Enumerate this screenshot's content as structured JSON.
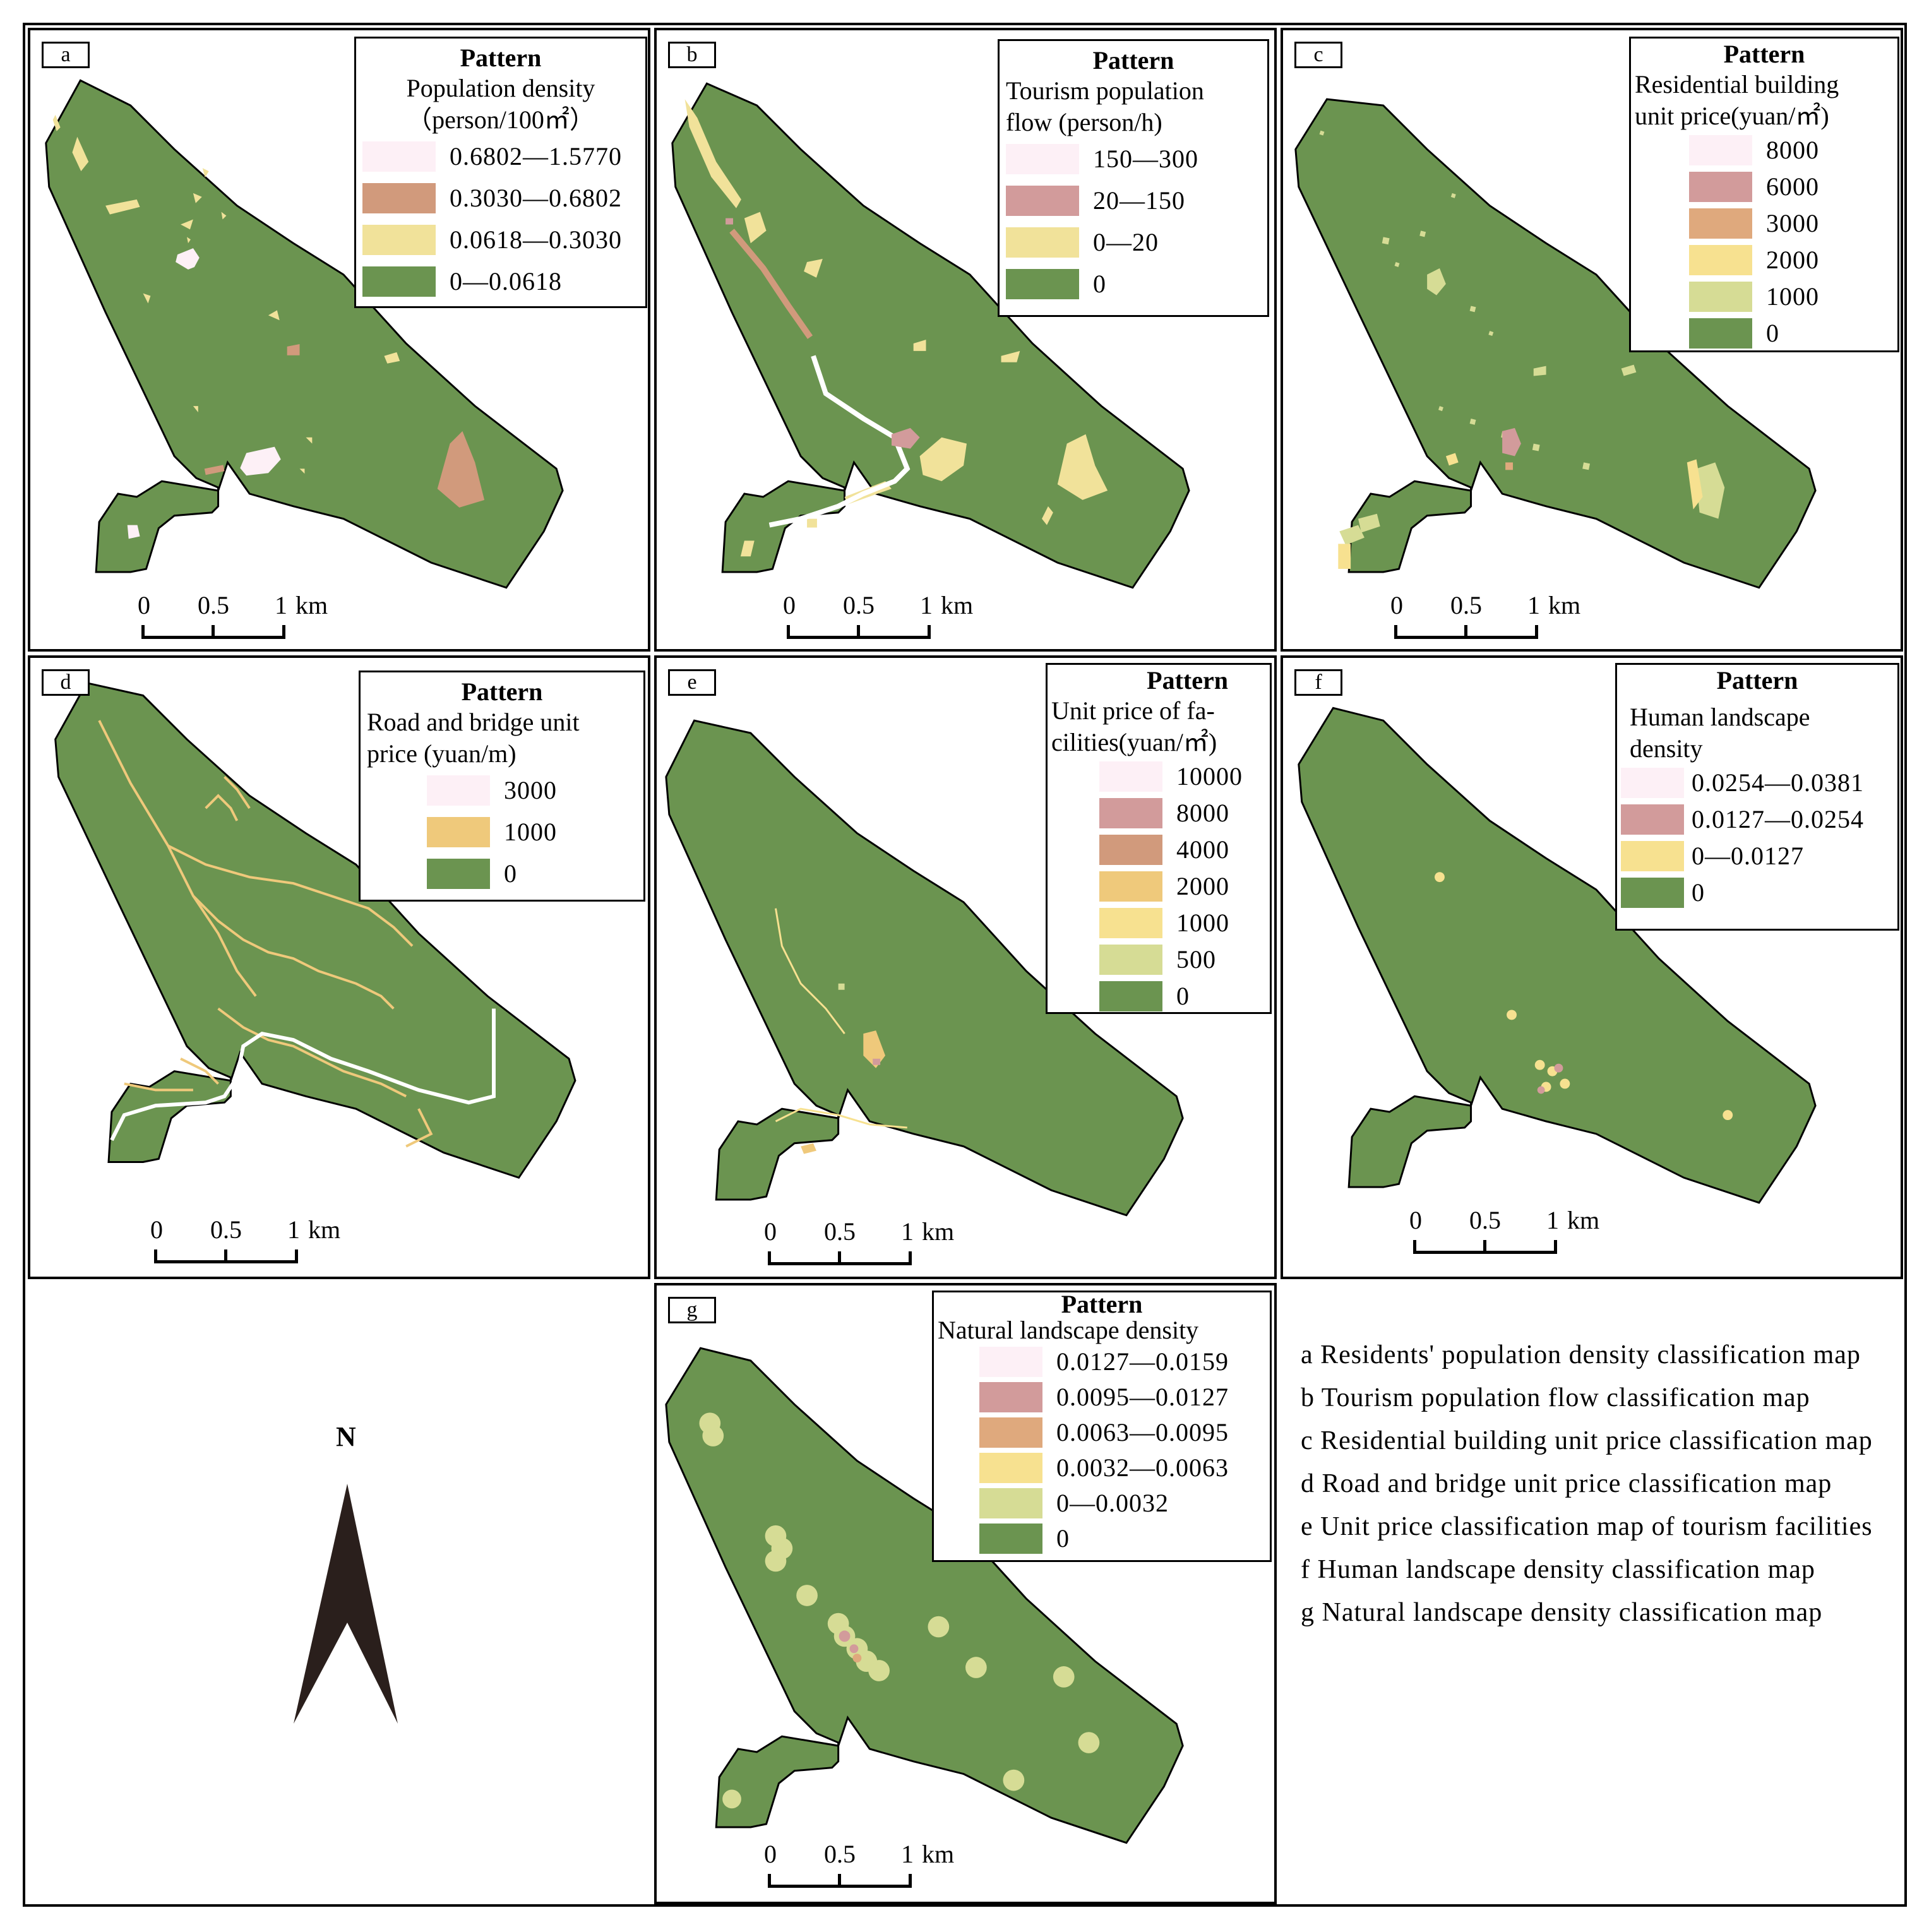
{
  "colors": {
    "base_green": "#6b9450",
    "pink_light": "#fdf0f6",
    "rose": "#d29b9b",
    "salmon": "#d19a7c",
    "orange": "#dfa97d",
    "yellow": "#f1e29a",
    "gold": "#efc97b",
    "pale_yellow": "#f7e190",
    "lime": "#d6dc95",
    "white": "#ffffff",
    "black": "#000000",
    "arrow": "#2a1f1c"
  },
  "scale_bar": {
    "zero": "0",
    "half": "0.5",
    "one": "1",
    "unit": "km"
  },
  "panels": {
    "a": {
      "label": "a",
      "legend": {
        "title": "Pattern",
        "subtitle_1": "Population density",
        "subtitle_2": "（person/100㎡）",
        "items": [
          {
            "label": "0.6802—1.5770",
            "color": "#fdf0f6"
          },
          {
            "label": "0.3030—0.6802",
            "color": "#d19a7c"
          },
          {
            "label": "0.0618—0.3030",
            "color": "#f1e29a"
          },
          {
            "label": "0—0.0618",
            "color": "#6b9450"
          }
        ]
      }
    },
    "b": {
      "label": "b",
      "legend": {
        "title": "Pattern",
        "subtitle_1": "Tourism population",
        "subtitle_2": "flow (person/h)",
        "items": [
          {
            "label": "150—300",
            "color": "#fdf0f6"
          },
          {
            "label": "20—150",
            "color": "#d29b9b"
          },
          {
            "label": "0—20",
            "color": "#f1e29a"
          },
          {
            "label": "0",
            "color": "#6b9450"
          }
        ]
      }
    },
    "c": {
      "label": "c",
      "legend": {
        "title": "Pattern",
        "subtitle_1": "Residential building",
        "subtitle_2": "unit price(yuan/㎡)",
        "items": [
          {
            "label": "8000",
            "color": "#fdf0f6"
          },
          {
            "label": "6000",
            "color": "#d29b9b"
          },
          {
            "label": "3000",
            "color": "#dfa97d"
          },
          {
            "label": "2000",
            "color": "#f7e190"
          },
          {
            "label": "1000",
            "color": "#d6dc95"
          },
          {
            "label": "0",
            "color": "#6b9450"
          }
        ]
      }
    },
    "d": {
      "label": "d",
      "legend": {
        "title": "Pattern",
        "subtitle_1": "Road and bridge unit",
        "subtitle_2": "price (yuan/m)",
        "items": [
          {
            "label": "3000",
            "color": "#fdf0f6"
          },
          {
            "label": "1000",
            "color": "#efc97b"
          },
          {
            "label": "0",
            "color": "#6b9450"
          }
        ]
      }
    },
    "e": {
      "label": "e",
      "legend": {
        "title": "Pattern",
        "subtitle_1": "Unit price of fa-",
        "subtitle_2": "cilities(yuan/㎡)",
        "items": [
          {
            "label": "10000",
            "color": "#fdf0f6"
          },
          {
            "label": "8000",
            "color": "#d29b9b"
          },
          {
            "label": "4000",
            "color": "#d19a7c"
          },
          {
            "label": "2000",
            "color": "#efc97b"
          },
          {
            "label": "1000",
            "color": "#f7e190"
          },
          {
            "label": "500",
            "color": "#d6dc95"
          },
          {
            "label": "0",
            "color": "#6b9450"
          }
        ]
      }
    },
    "f": {
      "label": "f",
      "legend": {
        "title": "Pattern",
        "subtitle_1": "Human landscape",
        "subtitle_2": "density",
        "items": [
          {
            "label": "0.0254—0.0381",
            "color": "#fdf0f6"
          },
          {
            "label": "0.0127—0.0254",
            "color": "#d29b9b"
          },
          {
            "label": "0—0.0127",
            "color": "#f7e190"
          },
          {
            "label": "0",
            "color": "#6b9450"
          }
        ]
      }
    },
    "g": {
      "label": "g",
      "legend": {
        "title": "Pattern",
        "subtitle_1": "Natural landscape density",
        "items": [
          {
            "label": "0.0127—0.0159",
            "color": "#fdf0f6"
          },
          {
            "label": "0.0095—0.0127",
            "color": "#d29b9b"
          },
          {
            "label": "0.0063—0.0095",
            "color": "#dfa97d"
          },
          {
            "label": "0.0032—0.0063",
            "color": "#f7e190"
          },
          {
            "label": "0—0.0032",
            "color": "#d6dc95"
          },
          {
            "label": "0",
            "color": "#6b9450"
          }
        ]
      }
    }
  },
  "north_arrow": {
    "label": "N"
  },
  "captions": [
    "a Residents' population density classification map",
    "b Tourism population flow classification map",
    "c Residential building unit price classification map",
    "d Road and bridge unit price classification map",
    "e Unit price classification map of tourism facilities",
    "f Human landscape density classification map",
    "g Natural landscape density classification map"
  ]
}
